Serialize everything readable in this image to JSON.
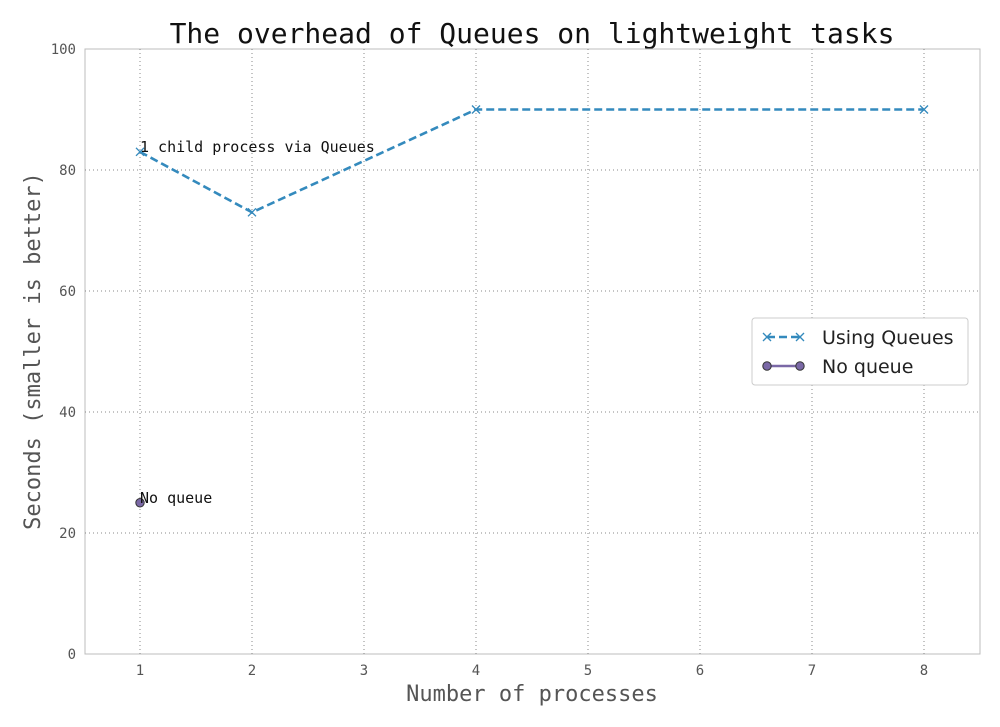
{
  "chart_data": {
    "type": "line",
    "title": "The overhead of Queues on lightweight tasks",
    "xlabel": "Number of processes",
    "ylabel": "Seconds (smaller is better)",
    "categories": [
      "1",
      "2",
      "3",
      "4",
      "5",
      "6",
      "7",
      "8"
    ],
    "ylim": [
      0,
      100
    ],
    "yticks": [
      "0",
      "20",
      "40",
      "60",
      "80",
      "100"
    ],
    "grid": true,
    "legend_position": "right",
    "series": [
      {
        "name": "Using Queues",
        "x": [
          "1",
          "2",
          "4",
          "8"
        ],
        "values": [
          83,
          73,
          90,
          90
        ],
        "color": "#348ABD",
        "style": "dashed",
        "marker": "x"
      },
      {
        "name": "No queue",
        "x": [
          "1"
        ],
        "values": [
          25
        ],
        "color": "#7A68A6",
        "style": "solid",
        "marker": "o"
      }
    ],
    "annotations": [
      {
        "text": "1 child process via Queues",
        "x": "1",
        "y": 83
      },
      {
        "text": "No queue",
        "x": "1",
        "y": 25
      }
    ]
  }
}
